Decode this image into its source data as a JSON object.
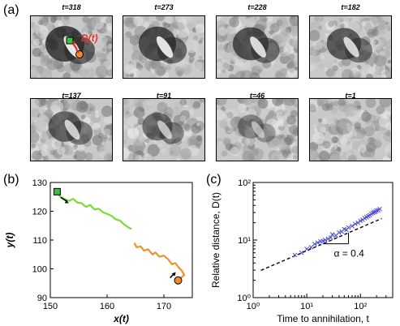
{
  "panel_a": {
    "letter": "(a)",
    "frames": [
      {
        "label": "t=318"
      },
      {
        "label": "t=273"
      },
      {
        "label": "t=228"
      },
      {
        "label": "t=182"
      },
      {
        "label": "t=137"
      },
      {
        "label": "t=91"
      },
      {
        "label": "t=46"
      },
      {
        "label": "t=1"
      }
    ],
    "annotation": "D(t)",
    "colors": {
      "square": "#3cc03c",
      "circle": "#f08a2a",
      "arrow": "#e8302a"
    }
  },
  "panel_b": {
    "letter": "(b)",
    "chart_data": {
      "type": "line",
      "xlabel": "x(t)",
      "ylabel": "y(t)",
      "xlim": [
        150,
        175
      ],
      "ylim": [
        90,
        130
      ],
      "xticks": [
        150,
        160,
        170
      ],
      "yticks": [
        90,
        100,
        110,
        120,
        130
      ],
      "series": [
        {
          "color": "#77dd33",
          "x": [
            151.2,
            151.8,
            152.6,
            153.3,
            154.0,
            154.8,
            155.5,
            156.3,
            157.0,
            157.8,
            158.5,
            159.3,
            160.0,
            160.8,
            161.5,
            162.3,
            163.0,
            163.8,
            164.3
          ],
          "y": [
            126.5,
            125.0,
            124.2,
            123.6,
            124.3,
            123.0,
            122.8,
            121.5,
            122.2,
            120.6,
            120.9,
            119.6,
            119.1,
            118.4,
            117.2,
            116.7,
            115.4,
            114.3,
            113.9
          ]
        },
        {
          "color": "#f0912e",
          "x": [
            164.8,
            165.2,
            165.9,
            166.5,
            167.2,
            168.0,
            168.5,
            169.2,
            170.0,
            170.8,
            171.4,
            172.0,
            172.6,
            173.2,
            173.6,
            173.0,
            172.5
          ],
          "y": [
            109.0,
            107.5,
            107.8,
            106.3,
            106.8,
            105.0,
            105.7,
            104.2,
            104.6,
            103.2,
            101.6,
            102.0,
            100.5,
            99.2,
            97.8,
            96.9,
            96.2
          ]
        }
      ],
      "markers": [
        {
          "shape": "square",
          "x": 151.2,
          "y": 126.8,
          "color": "#3cc03c"
        },
        {
          "shape": "circle",
          "x": 172.5,
          "y": 96.0,
          "color": "#f08a2a"
        }
      ]
    }
  },
  "panel_c": {
    "letter": "(c)",
    "chart_data": {
      "type": "scatter",
      "xlabel": "Time to annihilation, t",
      "ylabel": "Relative distance, D(t)",
      "xscale": "log",
      "yscale": "log",
      "xlim": [
        1,
        400
      ],
      "ylim": [
        1,
        100
      ],
      "xticks_text": [
        "10⁰",
        "10¹",
        "10²"
      ],
      "yticks_text": [
        "10⁰",
        "10¹",
        "10²"
      ],
      "series": [
        {
          "color": "#4a4acc",
          "marker": "x",
          "x": [
            6,
            8,
            10,
            12,
            14,
            16,
            18,
            20,
            22,
            25,
            28,
            30,
            35,
            40,
            45,
            50,
            55,
            60,
            70,
            80,
            90,
            100,
            110,
            120,
            130,
            140,
            150,
            160,
            170,
            180,
            190,
            200,
            215,
            230
          ],
          "y": [
            5.5,
            6.0,
            7.0,
            7.5,
            8.5,
            9.0,
            9.5,
            9.6,
            10.0,
            10.5,
            11.0,
            12.5,
            12.0,
            13.5,
            14.0,
            15.5,
            15.0,
            16.5,
            17.5,
            19.0,
            20.0,
            21.5,
            22.5,
            24.0,
            25.0,
            26.0,
            27.0,
            28.5,
            29.5,
            30.5,
            31.0,
            32.5,
            33.0,
            34.5
          ]
        }
      ],
      "fit_line": {
        "style": "dashed",
        "color": "#000000",
        "exponent": 0.4,
        "amplitude": 2.6,
        "x_range": [
          1.4,
          250
        ]
      },
      "annotation": "α = 0.4"
    }
  }
}
